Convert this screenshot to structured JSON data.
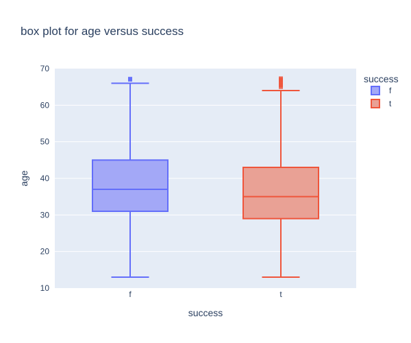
{
  "chart_data": {
    "type": "box",
    "title": "box plot for age versus success",
    "xlabel": "success",
    "ylabel": "age",
    "categories": [
      "f",
      "t"
    ],
    "ylim": [
      10,
      70
    ],
    "yticks": [
      10,
      20,
      30,
      40,
      50,
      60,
      70
    ],
    "grid": true,
    "legend": {
      "title": "success",
      "placement": "top-right",
      "entries": [
        "f",
        "t"
      ]
    },
    "series": [
      {
        "name": "f",
        "color": "#636efa",
        "fill": "#a3a8f7",
        "min": 13,
        "q1": 31,
        "median": 37,
        "q3": 45,
        "max": 66,
        "outliers": [
          67,
          67.2
        ]
      },
      {
        "name": "t",
        "color": "#ef553b",
        "fill": "#e9a195",
        "min": 13,
        "q1": 29,
        "median": 35,
        "q3": 43,
        "max": 64,
        "outliers": [
          65,
          65.5,
          66,
          66.5,
          67,
          67.3
        ]
      }
    ]
  }
}
